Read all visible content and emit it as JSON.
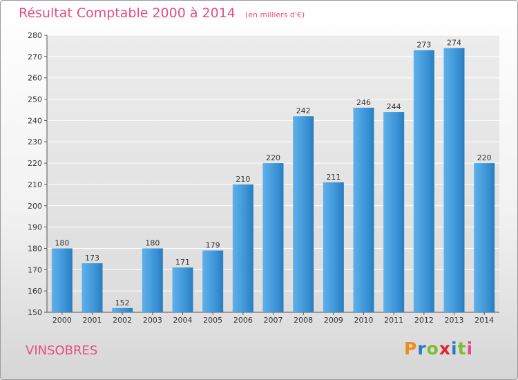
{
  "header": {
    "title": "Résultat Comptable 2000 à 2014",
    "subtitle": "(en milliers d'€)"
  },
  "commune": "VINSOBRES",
  "logo": {
    "letters": [
      {
        "ch": "P",
        "color": "#f28a1d"
      },
      {
        "ch": "r",
        "color": "#2b79c2"
      },
      {
        "ch": "o",
        "color": "#7cbd2f"
      },
      {
        "ch": "x",
        "color": "#e3262f"
      },
      {
        "ch": "i",
        "color": "#2b79c2"
      },
      {
        "ch": "t",
        "color": "#7cbd2f"
      },
      {
        "ch": "i",
        "color": "#e64c85"
      }
    ]
  },
  "chart_data": {
    "type": "bar",
    "title": "Résultat Comptable 2000 à 2014",
    "subtitle": "(en milliers d'€)",
    "categories": [
      "2000",
      "2001",
      "2002",
      "2003",
      "2004",
      "2005",
      "2006",
      "2007",
      "2008",
      "2009",
      "2010",
      "2011",
      "2012",
      "2013",
      "2014"
    ],
    "values": [
      180,
      173,
      152,
      180,
      171,
      179,
      210,
      220,
      242,
      211,
      246,
      244,
      273,
      274,
      220
    ],
    "ylim": [
      150,
      280
    ],
    "yticks": [
      150,
      160,
      170,
      180,
      190,
      200,
      210,
      220,
      230,
      240,
      250,
      260,
      270,
      280
    ],
    "grid": true,
    "bar_color": "#3d96d8",
    "bar_color_light": "#5fb0ea",
    "bar_color_dark": "#2a7dbf"
  }
}
